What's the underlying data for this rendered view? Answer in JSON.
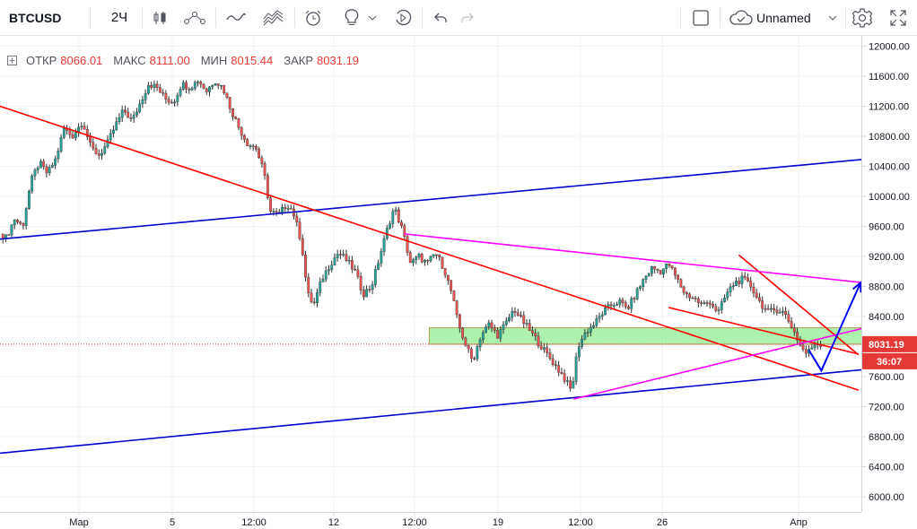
{
  "toolbar": {
    "symbol": "BTCUSD",
    "interval": "2Ч",
    "layout_name": "Unnamed"
  },
  "legend": {
    "open_label": "ОТКР",
    "open_value": "8066.01",
    "high_label": "МАКС",
    "high_value": "8111.00",
    "low_label": "МИН",
    "low_value": "8015.44",
    "close_label": "ЗАКР",
    "close_value": "8031.19"
  },
  "price_axis": {
    "ticks": [
      "12000.00",
      "11600.00",
      "11200.00",
      "10800.00",
      "10400.00",
      "10000.00",
      "9600.00",
      "9200.00",
      "8800.00",
      "8400.00",
      "8000.00",
      "7600.00",
      "7200.00",
      "6800.00",
      "6400.00",
      "6000.00"
    ],
    "last_price": "8031.19",
    "countdown": "36:07"
  },
  "time_axis": {
    "ticks": [
      "Мар",
      "5",
      "12:00",
      "12",
      "12:00",
      "19",
      "12:00",
      "26",
      "Апр"
    ]
  },
  "colors": {
    "up": "#26a69a",
    "down": "#ef5350",
    "wick": "#333333",
    "support_line": "#0000cc",
    "trend_red": "#ff0000",
    "triangle": "#ff00ff",
    "zone": "#90ee90",
    "projection": "#0000ff",
    "last_price": "#e53935"
  },
  "chart_data": {
    "type": "candlestick",
    "symbol": "BTCUSD",
    "interval": "2Ч",
    "ylim": [
      5800,
      12150
    ],
    "x_ticks": [
      "Мар",
      "5",
      "12:00",
      "12",
      "12:00",
      "19",
      "12:00",
      "26",
      "Апр"
    ],
    "last_close": 8031.19,
    "price_path": [
      {
        "x": 0.0,
        "p": 9500
      },
      {
        "x": 0.15,
        "p": 9450
      },
      {
        "x": 0.35,
        "p": 9700
      },
      {
        "x": 0.55,
        "p": 9600
      },
      {
        "x": 0.75,
        "p": 10200
      },
      {
        "x": 0.95,
        "p": 10450
      },
      {
        "x": 1.15,
        "p": 10300
      },
      {
        "x": 1.35,
        "p": 10500
      },
      {
        "x": 1.55,
        "p": 10900
      },
      {
        "x": 1.75,
        "p": 10800
      },
      {
        "x": 2.0,
        "p": 11000
      },
      {
        "x": 2.2,
        "p": 10650
      },
      {
        "x": 2.4,
        "p": 10550
      },
      {
        "x": 2.6,
        "p": 10700
      },
      {
        "x": 2.8,
        "p": 10950
      },
      {
        "x": 3.0,
        "p": 11150
      },
      {
        "x": 3.2,
        "p": 11000
      },
      {
        "x": 3.4,
        "p": 11250
      },
      {
        "x": 3.6,
        "p": 11500
      },
      {
        "x": 3.8,
        "p": 11450
      },
      {
        "x": 4.0,
        "p": 11300
      },
      {
        "x": 4.2,
        "p": 11250
      },
      {
        "x": 4.4,
        "p": 11500
      },
      {
        "x": 4.6,
        "p": 11450
      },
      {
        "x": 4.8,
        "p": 11550
      },
      {
        "x": 5.0,
        "p": 11400
      },
      {
        "x": 5.2,
        "p": 11550
      },
      {
        "x": 5.4,
        "p": 11450
      },
      {
        "x": 5.6,
        "p": 11150
      },
      {
        "x": 5.8,
        "p": 10900
      },
      {
        "x": 6.0,
        "p": 10700
      },
      {
        "x": 6.2,
        "p": 10650
      },
      {
        "x": 6.4,
        "p": 10300
      },
      {
        "x": 6.55,
        "p": 9800
      },
      {
        "x": 6.75,
        "p": 9750
      },
      {
        "x": 6.95,
        "p": 9900
      },
      {
        "x": 7.1,
        "p": 9800
      },
      {
        "x": 7.3,
        "p": 9400
      },
      {
        "x": 7.45,
        "p": 8700
      },
      {
        "x": 7.6,
        "p": 8550
      },
      {
        "x": 7.8,
        "p": 8900
      },
      {
        "x": 8.0,
        "p": 9100
      },
      {
        "x": 8.2,
        "p": 9250
      },
      {
        "x": 8.4,
        "p": 9150
      },
      {
        "x": 8.6,
        "p": 9000
      },
      {
        "x": 8.8,
        "p": 8700
      },
      {
        "x": 9.0,
        "p": 8800
      },
      {
        "x": 9.2,
        "p": 9200
      },
      {
        "x": 9.4,
        "p": 9600
      },
      {
        "x": 9.55,
        "p": 9850
      },
      {
        "x": 9.75,
        "p": 9550
      },
      {
        "x": 9.95,
        "p": 9100
      },
      {
        "x": 10.15,
        "p": 9200
      },
      {
        "x": 10.35,
        "p": 9100
      },
      {
        "x": 10.55,
        "p": 9250
      },
      {
        "x": 10.75,
        "p": 9050
      },
      {
        "x": 10.95,
        "p": 8700
      },
      {
        "x": 11.1,
        "p": 8300
      },
      {
        "x": 11.3,
        "p": 8000
      },
      {
        "x": 11.45,
        "p": 7800
      },
      {
        "x": 11.65,
        "p": 8150
      },
      {
        "x": 11.85,
        "p": 8300
      },
      {
        "x": 12.05,
        "p": 8150
      },
      {
        "x": 12.25,
        "p": 8300
      },
      {
        "x": 12.45,
        "p": 8500
      },
      {
        "x": 12.65,
        "p": 8350
      },
      {
        "x": 12.85,
        "p": 8200
      },
      {
        "x": 13.05,
        "p": 8050
      },
      {
        "x": 13.25,
        "p": 7900
      },
      {
        "x": 13.45,
        "p": 7750
      },
      {
        "x": 13.65,
        "p": 7600
      },
      {
        "x": 13.85,
        "p": 7400
      },
      {
        "x": 14.0,
        "p": 8000
      },
      {
        "x": 14.2,
        "p": 8200
      },
      {
        "x": 14.4,
        "p": 8300
      },
      {
        "x": 14.6,
        "p": 8450
      },
      {
        "x": 14.8,
        "p": 8550
      },
      {
        "x": 15.0,
        "p": 8600
      },
      {
        "x": 15.2,
        "p": 8500
      },
      {
        "x": 15.4,
        "p": 8700
      },
      {
        "x": 15.6,
        "p": 8900
      },
      {
        "x": 15.8,
        "p": 9050
      },
      {
        "x": 16.0,
        "p": 9000
      },
      {
        "x": 16.2,
        "p": 9100
      },
      {
        "x": 16.4,
        "p": 8900
      },
      {
        "x": 16.6,
        "p": 8700
      },
      {
        "x": 16.8,
        "p": 8650
      },
      {
        "x": 17.0,
        "p": 8550
      },
      {
        "x": 17.2,
        "p": 8600
      },
      {
        "x": 17.4,
        "p": 8450
      },
      {
        "x": 17.6,
        "p": 8700
      },
      {
        "x": 17.8,
        "p": 8850
      },
      {
        "x": 18.0,
        "p": 8900
      },
      {
        "x": 18.2,
        "p": 8800
      },
      {
        "x": 18.4,
        "p": 8600
      },
      {
        "x": 18.6,
        "p": 8450
      },
      {
        "x": 18.8,
        "p": 8500
      },
      {
        "x": 19.0,
        "p": 8450
      },
      {
        "x": 19.2,
        "p": 8250
      },
      {
        "x": 19.4,
        "p": 8000
      },
      {
        "x": 19.55,
        "p": 7900
      },
      {
        "x": 19.75,
        "p": 8050
      },
      {
        "x": 19.9,
        "p": 8031
      }
    ],
    "drawings": [
      {
        "type": "trendline",
        "color": "#0000cc",
        "from": {
          "x": 0.0,
          "p": 9430
        },
        "to": {
          "x": 25.0,
          "p": 10700
        }
      },
      {
        "type": "trendline",
        "color": "#0000cc",
        "from": {
          "x": 0.0,
          "p": 6580
        },
        "to": {
          "x": 25.0,
          "p": 7910
        }
      },
      {
        "type": "trendline",
        "color": "#ff0000",
        "from": {
          "x": 0.0,
          "p": 11200
        },
        "to": {
          "x": 20.8,
          "p": 7420
        }
      },
      {
        "type": "trendline",
        "color": "#ff0000",
        "from": {
          "x": 16.2,
          "p": 8520
        },
        "to": {
          "x": 20.8,
          "p": 7900
        }
      },
      {
        "type": "trendline",
        "color": "#ff0000",
        "from": {
          "x": 17.9,
          "p": 9220
        },
        "to": {
          "x": 20.8,
          "p": 7890
        }
      },
      {
        "type": "trendline",
        "color": "#ff00ff",
        "from": {
          "x": 9.8,
          "p": 9500
        },
        "to": {
          "x": 24.0,
          "p": 8670
        }
      },
      {
        "type": "trendline",
        "color": "#ff00ff",
        "from": {
          "x": 13.9,
          "p": 7300
        },
        "to": {
          "x": 24.0,
          "p": 8660
        }
      },
      {
        "type": "rectangle",
        "color": "#90ee90",
        "x1": 10.4,
        "x2": 20.9,
        "p1": 8030,
        "p2": 8250
      },
      {
        "type": "path",
        "color": "#0000ff",
        "points": [
          {
            "x": 19.6,
            "p": 7950
          },
          {
            "x": 19.9,
            "p": 7680
          },
          {
            "x": 20.85,
            "p": 8850
          }
        ]
      }
    ]
  }
}
